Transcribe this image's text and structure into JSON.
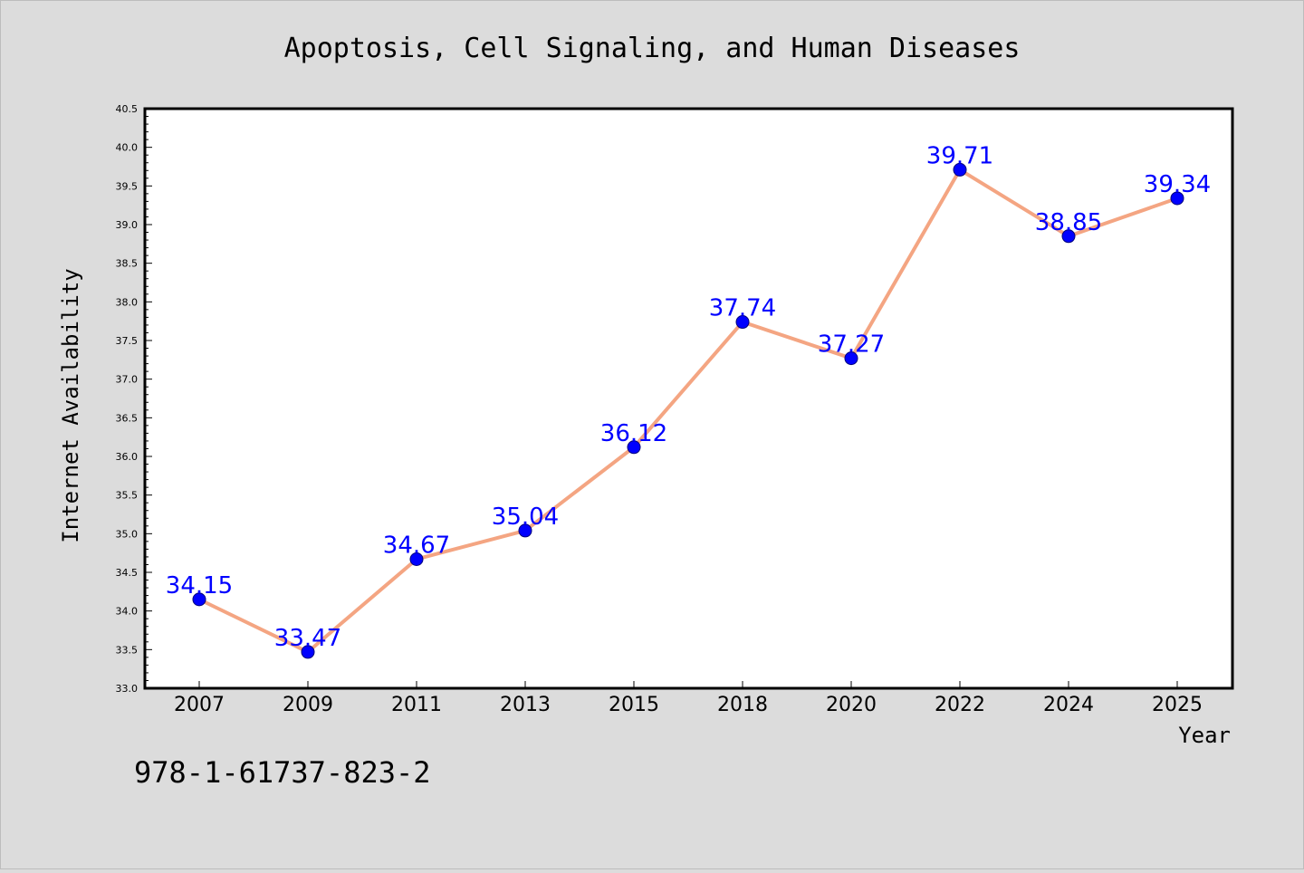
{
  "chart_data": {
    "type": "line",
    "title": "Apoptosis, Cell Signaling, and Human Diseases",
    "xlabel": "Year",
    "ylabel": "Internet Availability",
    "categories": [
      "2007",
      "2009",
      "2011",
      "2013",
      "2015",
      "2018",
      "2020",
      "2022",
      "2024",
      "2025"
    ],
    "series": [
      {
        "values": [
          34.15,
          33.47,
          34.67,
          35.04,
          36.12,
          37.74,
          37.27,
          39.71,
          38.85,
          39.34
        ],
        "labels": [
          "34.15",
          "33.47",
          "34.67",
          "35.04",
          "36.12",
          "37.74",
          "37.27",
          "39.71",
          "38.85",
          "39.34"
        ]
      }
    ],
    "ylim": [
      33.0,
      40.5
    ],
    "yticks": [
      "33.0",
      "33.5",
      "34.0",
      "34.5",
      "35.0",
      "35.5",
      "36.0",
      "36.5",
      "37.0",
      "37.5",
      "38.0",
      "38.5",
      "39.0",
      "39.5",
      "40.0",
      "40.5"
    ],
    "grid": false,
    "colors": {
      "line": "#f4a582",
      "marker": "#0000ff",
      "label": "#0000ff",
      "background": "#dcdcdc",
      "plot_background": "#ffffff"
    }
  },
  "caption": "978-1-61737-823-2"
}
